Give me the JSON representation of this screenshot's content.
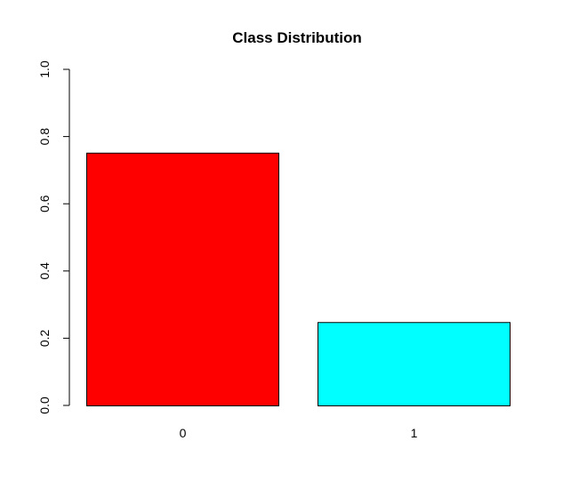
{
  "chart_data": {
    "type": "bar",
    "title": "Class Distribution",
    "xlabel": "",
    "ylabel": "",
    "categories": [
      "0",
      "1"
    ],
    "values": [
      0.752,
      0.248
    ],
    "colors": [
      "#ff0000",
      "#00ffff"
    ],
    "ylim": [
      0,
      1
    ],
    "y_ticks": [
      0,
      0.2,
      0.4,
      0.6,
      0.8,
      1
    ],
    "y_tick_labels": [
      "0.0",
      "0.2",
      "0.4",
      "0.6",
      "0.8",
      "1.0"
    ],
    "grid": false,
    "legend": "none"
  }
}
